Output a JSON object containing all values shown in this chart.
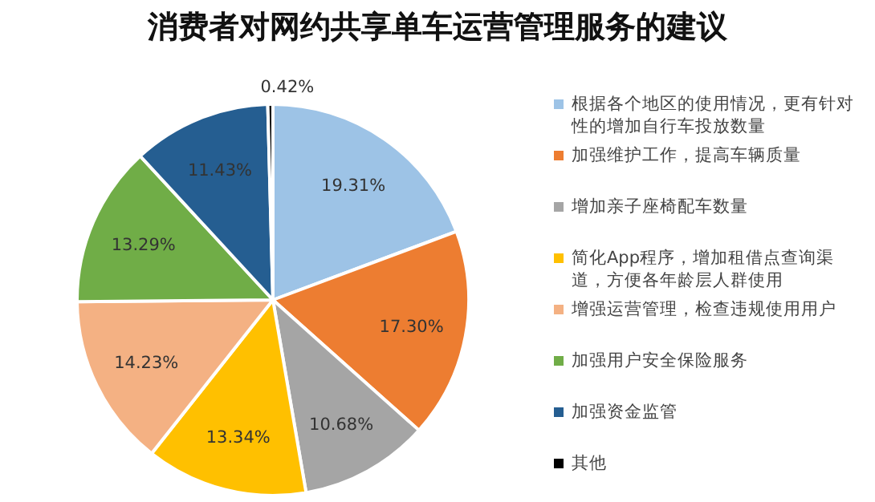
{
  "chart_data": {
    "type": "pie",
    "title": "消费者对网约共享单车运营管理服务的建议",
    "categories": [
      "根据各个地区的使用情况，更有针对性的增加自行车投放数量",
      "加强维护工作，提高车辆质量",
      "增加亲子座椅配车数量",
      "简化App程序，增加租借点查询渠道，方便各年龄层人群使用",
      "增强运营管理，检查违规使用用户",
      "加强用户安全保险服务",
      "加强资金监管",
      "其他"
    ],
    "values": [
      19.31,
      17.3,
      10.68,
      13.34,
      14.23,
      13.29,
      11.43,
      0.42
    ],
    "colors": [
      "#9dc3e6",
      "#ed7d31",
      "#a5a5a5",
      "#ffc000",
      "#f4b183",
      "#70ad47",
      "#255e91",
      "#000000"
    ],
    "value_labels": [
      "19.31%",
      "17.30%",
      "10.68%",
      "13.34%",
      "14.23%",
      "13.29%",
      "11.43%",
      "0.42%"
    ],
    "legend": "right"
  }
}
